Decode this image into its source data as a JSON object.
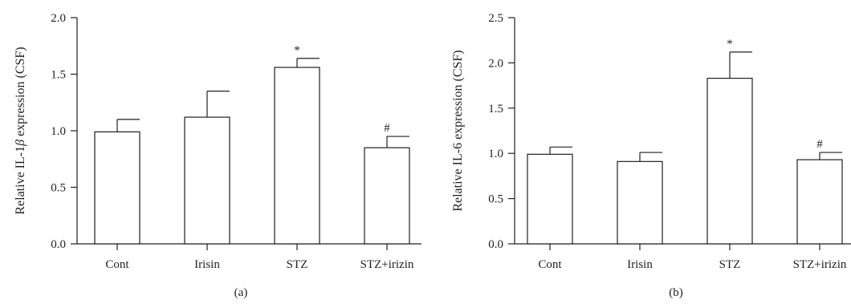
{
  "chart_data": [
    {
      "type": "bar",
      "panel_label": "(a)",
      "ylabel": "Relative IL-1β expression (CSF)",
      "ylabel_prefix": "Relative IL-1",
      "ylabel_symbol": "β",
      "ylabel_suffix": " expression (CSF)",
      "categories": [
        "Cont",
        "Irisin",
        "STZ",
        "STZ+irizin"
      ],
      "values": [
        0.99,
        1.12,
        1.56,
        0.85
      ],
      "errors": [
        0.11,
        0.23,
        0.08,
        0.1
      ],
      "significance": [
        "",
        "",
        "*",
        "#"
      ],
      "ylim": [
        0,
        2.0
      ],
      "yticks": [
        "0.0",
        "0.5",
        "1.0",
        "1.5",
        "2.0"
      ],
      "grid": false,
      "legend": "none",
      "colors": {
        "bar_fill": "#ffffff",
        "stroke": "#231f20"
      }
    },
    {
      "type": "bar",
      "panel_label": "(b)",
      "ylabel": "Relative IL-6 expression (CSF)",
      "ylabel_prefix": "Relative IL-6 expression (CSF)",
      "ylabel_symbol": "",
      "ylabel_suffix": "",
      "categories": [
        "Cont",
        "Irisin",
        "STZ",
        "STZ+irizin"
      ],
      "values": [
        0.99,
        0.91,
        1.83,
        0.93
      ],
      "errors": [
        0.08,
        0.1,
        0.29,
        0.08
      ],
      "significance": [
        "",
        "",
        "*",
        "#"
      ],
      "ylim": [
        0,
        2.5
      ],
      "yticks": [
        "0.0",
        "0.5",
        "1.0",
        "1.5",
        "2.0",
        "2.5"
      ],
      "grid": false,
      "legend": "none",
      "colors": {
        "bar_fill": "#ffffff",
        "stroke": "#231f20"
      }
    }
  ]
}
